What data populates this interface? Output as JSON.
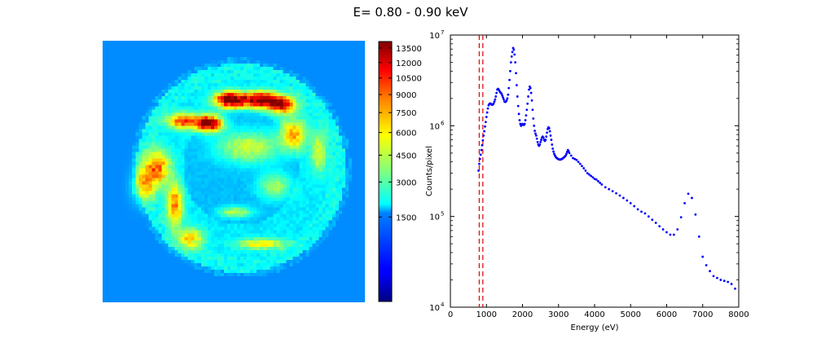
{
  "title": "E= 0.80 - 0.90 keV",
  "colorbar": {
    "ticks": [
      1500,
      3000,
      4500,
      6000,
      7500,
      9000,
      10500,
      12000,
      13500
    ],
    "tick_labels": [
      "1500",
      "3000",
      "4500",
      "6000",
      "7500",
      "9000",
      "10500",
      "12000",
      "13500"
    ],
    "vmin": 0,
    "vmax": 14200,
    "scale": "sqrt"
  },
  "chart_data": [
    {
      "type": "heatmap",
      "title": "",
      "description_values_range": [
        0,
        14200
      ],
      "colormap": "jet"
    },
    {
      "type": "scatter",
      "title": "",
      "xlabel": "Energy (eV)",
      "ylabel": "Counts/pixel",
      "xlim": [
        0,
        8000
      ],
      "ylim": [
        10000,
        10000000
      ],
      "yscale": "log",
      "x_ticks": [
        0,
        1000,
        2000,
        3000,
        4000,
        5000,
        6000,
        7000,
        8000
      ],
      "x_tick_labels": [
        "0",
        "1000",
        "2000",
        "3000",
        "4000",
        "5000",
        "6000",
        "7000",
        "8000"
      ],
      "y_tick_labels": [
        "10",
        "10",
        "10",
        "10"
      ],
      "y_tick_exponents": [
        "4",
        "5",
        "6",
        "7"
      ],
      "y_tick_values": [
        10000,
        100000,
        1000000,
        10000000
      ],
      "band_lines": [
        800,
        900
      ],
      "band_color": "#dd0000",
      "marker_color": "#0000ff",
      "series": [
        {
          "name": "spectrum",
          "x": [
            780,
            800,
            820,
            840,
            860,
            880,
            900,
            920,
            940,
            960,
            980,
            1000,
            1020,
            1040,
            1060,
            1080,
            1100,
            1120,
            1140,
            1160,
            1180,
            1200,
            1220,
            1240,
            1260,
            1280,
            1300,
            1320,
            1340,
            1360,
            1380,
            1400,
            1420,
            1440,
            1460,
            1480,
            1500,
            1520,
            1540,
            1560,
            1580,
            1600,
            1620,
            1640,
            1660,
            1680,
            1700,
            1720,
            1740,
            1760,
            1780,
            1800,
            1820,
            1840,
            1860,
            1880,
            1900,
            1920,
            1940,
            1960,
            1980,
            2000,
            2020,
            2040,
            2060,
            2080,
            2100,
            2120,
            2140,
            2160,
            2180,
            2200,
            2220,
            2240,
            2260,
            2280,
            2300,
            2320,
            2340,
            2360,
            2380,
            2400,
            2420,
            2440,
            2460,
            2480,
            2500,
            2520,
            2540,
            2560,
            2580,
            2600,
            2620,
            2640,
            2660,
            2680,
            2700,
            2720,
            2740,
            2760,
            2780,
            2800,
            2820,
            2840,
            2860,
            2880,
            2900,
            2920,
            2940,
            2960,
            2980,
            3000,
            3020,
            3040,
            3060,
            3080,
            3100,
            3120,
            3140,
            3160,
            3180,
            3200,
            3220,
            3240,
            3260,
            3280,
            3300,
            3350,
            3400,
            3450,
            3500,
            3550,
            3600,
            3650,
            3700,
            3750,
            3800,
            3850,
            3900,
            3950,
            4000,
            4050,
            4100,
            4150,
            4200,
            4300,
            4400,
            4500,
            4600,
            4700,
            4800,
            4900,
            5000,
            5100,
            5200,
            5300,
            5400,
            5500,
            5600,
            5700,
            5800,
            5900,
            6000,
            6100,
            6200,
            6300,
            6400,
            6500,
            6600,
            6700,
            6800,
            6900,
            7000,
            7100,
            7200,
            7300,
            7400,
            7500,
            7600,
            7700,
            7800,
            7900
          ],
          "y": [
            320000,
            380000,
            430000,
            480000,
            540000,
            610000,
            690000,
            780000,
            870000,
            980000,
            1100000,
            1250000,
            1400000,
            1550000,
            1680000,
            1740000,
            1760000,
            1750000,
            1720000,
            1700000,
            1720000,
            1760000,
            1850000,
            1950000,
            2100000,
            2300000,
            2500000,
            2550000,
            2500000,
            2420000,
            2350000,
            2300000,
            2250000,
            2150000,
            2050000,
            1950000,
            1850000,
            1830000,
            1850000,
            1900000,
            2000000,
            2200000,
            2600000,
            3200000,
            4000000,
            5000000,
            5800000,
            6500000,
            7200000,
            6900000,
            6100000,
            5000000,
            3800000,
            2800000,
            2100000,
            1650000,
            1350000,
            1150000,
            1050000,
            1000000,
            1020000,
            1050000,
            1030000,
            1020000,
            1050000,
            1150000,
            1300000,
            1500000,
            1750000,
            2100000,
            2500000,
            2700000,
            2600000,
            2300000,
            1900000,
            1500000,
            1200000,
            1000000,
            880000,
            820000,
            780000,
            720000,
            660000,
            620000,
            600000,
            620000,
            660000,
            700000,
            740000,
            760000,
            740000,
            700000,
            680000,
            700000,
            760000,
            840000,
            920000,
            960000,
            940000,
            870000,
            780000,
            700000,
            620000,
            560000,
            520000,
            490000,
            470000,
            455000,
            445000,
            438000,
            432000,
            428000,
            426000,
            424000,
            425000,
            428000,
            432000,
            438000,
            445000,
            452000,
            460000,
            470000,
            490000,
            515000,
            540000,
            525000,
            500000,
            470000,
            440000,
            430000,
            420000,
            400000,
            380000,
            360000,
            340000,
            320000,
            300000,
            290000,
            280000,
            270000,
            260000,
            255000,
            245000,
            235000,
            225000,
            210000,
            200000,
            190000,
            180000,
            170000,
            160000,
            150000,
            140000,
            130000,
            120000,
            113000,
            108000,
            100000,
            92000,
            85000,
            78000,
            72000,
            67000,
            63000,
            63000,
            72000,
            98000,
            140000,
            178000,
            160000,
            105000,
            60000,
            36000,
            29000,
            25000,
            22000,
            21000,
            20000,
            19500,
            19000,
            18000,
            16000
          ]
        }
      ]
    }
  ]
}
